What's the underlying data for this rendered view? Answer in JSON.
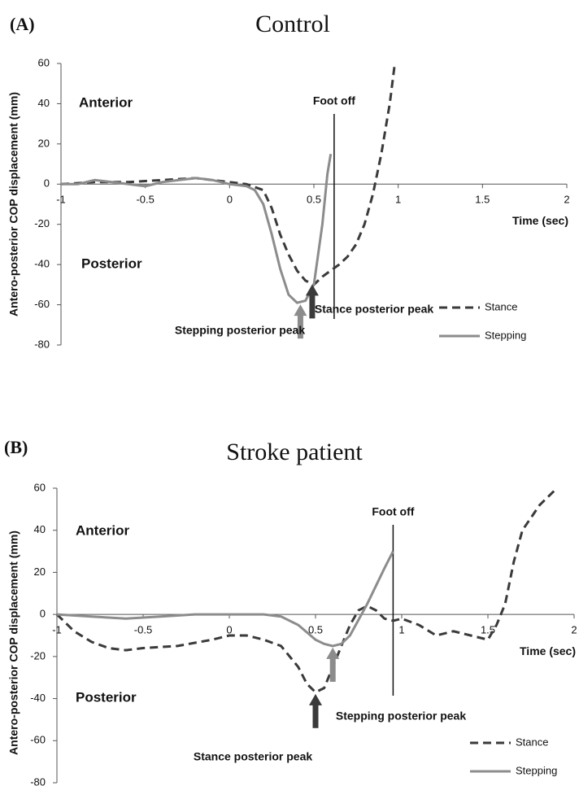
{
  "chart_data": [
    {
      "type": "line",
      "panel_label": "(A)",
      "title": "Control",
      "ylabel": "Antero-posterior COP displacement (mm)",
      "xlabel": "Time (sec)",
      "xlim": [
        -1,
        2
      ],
      "ylim": [
        -80,
        60
      ],
      "xticks": [
        -1,
        -0.5,
        0,
        0.5,
        1,
        1.5,
        2
      ],
      "yticks": [
        -80,
        -60,
        -40,
        -20,
        0,
        20,
        40,
        60
      ],
      "anterior": "Anterior",
      "posterior": "Posterior",
      "foot_off": {
        "label": "Foot off",
        "x": 0.62
      },
      "peaks": [
        {
          "label": "Stepping posterior peak",
          "x": 0.42,
          "y": -59,
          "color": "#8c8c8c"
        },
        {
          "label": "Stance posterior peak",
          "x": 0.49,
          "y": -49,
          "color": "#3a3a3a"
        }
      ],
      "series": [
        {
          "name": "Stance",
          "color": "#3a3a3a",
          "dashed": true,
          "x": [
            -1,
            -0.8,
            -0.6,
            -0.4,
            -0.2,
            0,
            0.1,
            0.2,
            0.25,
            0.3,
            0.35,
            0.4,
            0.45,
            0.5,
            0.55,
            0.6,
            0.65,
            0.7,
            0.75,
            0.8,
            0.85,
            0.9,
            0.95,
            0.98
          ],
          "values": [
            0,
            1,
            1,
            2,
            3,
            1,
            0,
            -3,
            -12,
            -25,
            -35,
            -43,
            -48,
            -50,
            -46,
            -43,
            -40,
            -36,
            -30,
            -20,
            -5,
            15,
            40,
            60
          ]
        },
        {
          "name": "Stepping",
          "color": "#8c8c8c",
          "dashed": false,
          "x": [
            -1,
            -0.9,
            -0.8,
            -0.7,
            -0.6,
            -0.5,
            -0.4,
            -0.3,
            -0.2,
            -0.1,
            0,
            0.1,
            0.15,
            0.2,
            0.25,
            0.3,
            0.35,
            0.4,
            0.45,
            0.5,
            0.55,
            0.58,
            0.6
          ],
          "values": [
            0,
            0,
            2,
            1,
            0,
            -1,
            1,
            2,
            3,
            2,
            0,
            -1,
            -3,
            -10,
            -25,
            -42,
            -55,
            -59,
            -58,
            -50,
            -20,
            5,
            15
          ]
        }
      ]
    },
    {
      "type": "line",
      "panel_label": "(B)",
      "title": "Stroke patient",
      "ylabel": "Antero-posterior COP displacement (mm)",
      "xlabel": "Time (sec)",
      "xlim": [
        -1,
        2
      ],
      "ylim": [
        -80,
        60
      ],
      "xticks": [
        -1,
        -0.5,
        0,
        0.5,
        1,
        1.5,
        2
      ],
      "yticks": [
        -80,
        -60,
        -40,
        -20,
        0,
        20,
        40,
        60
      ],
      "anterior": "Anterior",
      "posterior": "Posterior",
      "foot_off": {
        "label": "Foot off",
        "x": 0.95
      },
      "peaks": [
        {
          "label": "Stepping posterior peak",
          "x": 0.6,
          "y": -15,
          "color": "#8c8c8c"
        },
        {
          "label": "Stance posterior peak",
          "x": 0.5,
          "y": -37,
          "color": "#3a3a3a"
        }
      ],
      "series": [
        {
          "name": "Stance",
          "color": "#3a3a3a",
          "dashed": true,
          "x": [
            -1,
            -0.9,
            -0.8,
            -0.7,
            -0.6,
            -0.5,
            -0.3,
            -0.1,
            0,
            0.1,
            0.2,
            0.3,
            0.4,
            0.45,
            0.5,
            0.55,
            0.6,
            0.65,
            0.7,
            0.75,
            0.8,
            0.85,
            0.9,
            0.95,
            1,
            1.1,
            1.2,
            1.3,
            1.4,
            1.5,
            1.55,
            1.6,
            1.65,
            1.7,
            1.8,
            1.9
          ],
          "values": [
            0,
            -8,
            -13,
            -16,
            -17,
            -16,
            -15,
            -12,
            -10,
            -10,
            -12,
            -15,
            -25,
            -33,
            -37,
            -35,
            -25,
            -15,
            -5,
            2,
            4,
            2,
            -2,
            -3,
            -2,
            -5,
            -10,
            -8,
            -10,
            -12,
            -5,
            5,
            25,
            40,
            52,
            60
          ]
        },
        {
          "name": "Stepping",
          "color": "#8c8c8c",
          "dashed": false,
          "x": [
            -1,
            -0.8,
            -0.6,
            -0.4,
            -0.2,
            0,
            0.2,
            0.3,
            0.4,
            0.5,
            0.55,
            0.6,
            0.65,
            0.7,
            0.8,
            0.9,
            0.95
          ],
          "values": [
            0,
            -1,
            -2,
            -1,
            0,
            0,
            0,
            -1,
            -5,
            -12,
            -14,
            -15,
            -14,
            -10,
            5,
            22,
            30
          ]
        }
      ]
    }
  ]
}
